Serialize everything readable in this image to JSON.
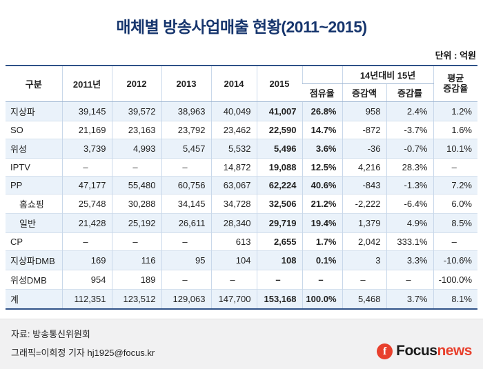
{
  "title": "매체별 방송사업매출 현황(2011~2015)",
  "unit_label": "단위 : 억원",
  "header": {
    "col_category": "구분",
    "years": [
      "2011년",
      "2012",
      "2013",
      "2014",
      "2015"
    ],
    "share": "점유율",
    "compare_group": "14년대비 15년",
    "compare_amount": "증감액",
    "compare_rate": "증감률",
    "avg_line1": "평균",
    "avg_line2": "증감율"
  },
  "chart_data": {
    "type": "table",
    "title": "매체별 방송사업매출 현황(2011~2015)",
    "unit": "단위 : 억원",
    "columns": [
      "구분",
      "2011년",
      "2012",
      "2013",
      "2014",
      "2015",
      "점유율",
      "14년대비 15년 증감액",
      "14년대비 15년 증감률",
      "평균 증감율"
    ],
    "rows": [
      {
        "label": "지상파",
        "indent": false,
        "values": [
          "39,145",
          "39,572",
          "38,963",
          "40,049",
          "41,007",
          "26.8%",
          "958",
          "2.4%",
          "1.2%"
        ]
      },
      {
        "label": "SO",
        "indent": false,
        "values": [
          "21,169",
          "23,163",
          "23,792",
          "23,462",
          "22,590",
          "14.7%",
          "-872",
          "-3.7%",
          "1.6%"
        ]
      },
      {
        "label": "위성",
        "indent": false,
        "values": [
          "3,739",
          "4,993",
          "5,457",
          "5,532",
          "5,496",
          "3.6%",
          "-36",
          "-0.7%",
          "10.1%"
        ]
      },
      {
        "label": "IPTV",
        "indent": false,
        "values": [
          "–",
          "–",
          "–",
          "14,872",
          "19,088",
          "12.5%",
          "4,216",
          "28.3%",
          "–"
        ]
      },
      {
        "label": "PP",
        "indent": false,
        "values": [
          "47,177",
          "55,480",
          "60,756",
          "63,067",
          "62,224",
          "40.6%",
          "-843",
          "-1.3%",
          "7.2%"
        ]
      },
      {
        "label": "홈쇼핑",
        "indent": true,
        "values": [
          "25,748",
          "30,288",
          "34,145",
          "34,728",
          "32,506",
          "21.2%",
          "-2,222",
          "-6.4%",
          "6.0%"
        ]
      },
      {
        "label": "일반",
        "indent": true,
        "values": [
          "21,428",
          "25,192",
          "26,611",
          "28,340",
          "29,719",
          "19.4%",
          "1,379",
          "4.9%",
          "8.5%"
        ]
      },
      {
        "label": "CP",
        "indent": false,
        "values": [
          "–",
          "–",
          "–",
          "613",
          "2,655",
          "1.7%",
          "2,042",
          "333.1%",
          "–"
        ]
      },
      {
        "label": "지상파DMB",
        "indent": false,
        "values": [
          "169",
          "116",
          "95",
          "104",
          "108",
          "0.1%",
          "3",
          "3.3%",
          "-10.6%"
        ]
      },
      {
        "label": "위성DMB",
        "indent": false,
        "values": [
          "954",
          "189",
          "–",
          "–",
          "–",
          "–",
          "–",
          "–",
          "-100.0%"
        ]
      },
      {
        "label": "계",
        "indent": false,
        "values": [
          "112,351",
          "123,512",
          "129,063",
          "147,700",
          "153,168",
          "100.0%",
          "5,468",
          "3.7%",
          "8.1%"
        ]
      }
    ]
  },
  "footer": {
    "source": "자료: 방송통신위원회",
    "credit": "그래픽=이희정 기자 hj1925@focus.kr",
    "logo_symbol": "f",
    "logo_focus": "Focus",
    "logo_news": "news"
  },
  "colors": {
    "title_navy": "#16356d",
    "table_border_navy": "#2f5288",
    "row_stripe_blue": "#eaf2fa",
    "logo_red": "#e8402d"
  }
}
